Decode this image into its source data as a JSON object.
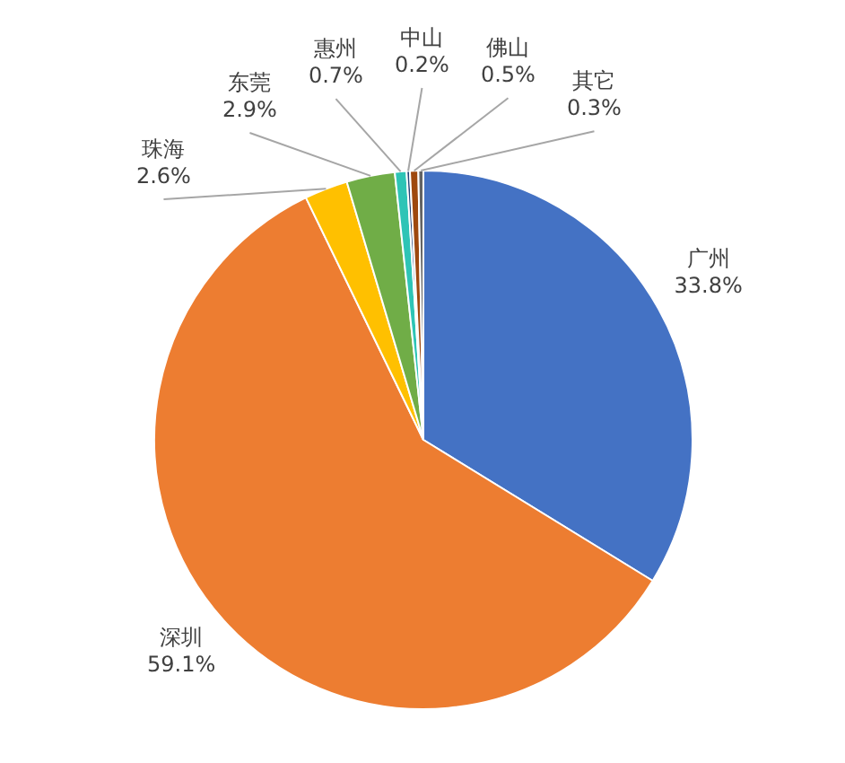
{
  "chart_data": {
    "type": "pie",
    "categories": [
      "广州",
      "深圳",
      "珠海",
      "东莞",
      "惠州",
      "中山",
      "佛山",
      "其它"
    ],
    "values": [
      33.8,
      59.1,
      2.6,
      2.9,
      0.7,
      0.2,
      0.5,
      0.3
    ],
    "colors": [
      "#4472c4",
      "#ed7d31",
      "#ffc000",
      "#70ad47",
      "#2ec4b6",
      "#264478",
      "#9e480e",
      "#636363"
    ],
    "value_labels": [
      "33.8%",
      "59.1%",
      "2.6%",
      "2.9%",
      "0.7%",
      "0.2%",
      "0.5%",
      "0.3%"
    ]
  }
}
